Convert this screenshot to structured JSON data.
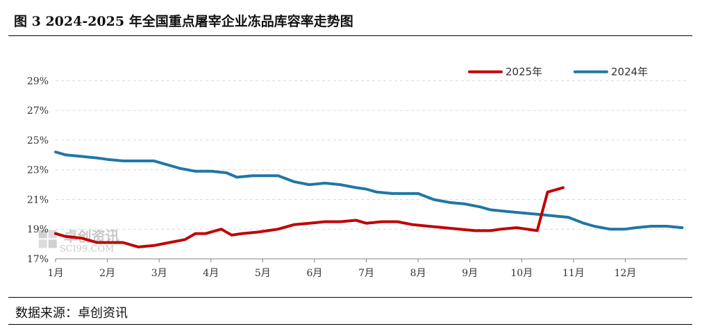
{
  "title": "图 3  2024-2025 年全国重点屠宰企业冻品库容率走势图",
  "source": "数据来源：卓创资讯",
  "watermark": {
    "brand": "卓创资讯",
    "url": "SCI99.COM"
  },
  "colors": {
    "series_2025": "#c00000",
    "series_2024": "#1f77a4",
    "grid": "#d9d9d9",
    "axis": "#808080"
  },
  "chart_data": {
    "type": "line",
    "x_ticks": [
      "1月",
      "2月",
      "3月",
      "4月",
      "5月",
      "6月",
      "7月",
      "8月",
      "9月",
      "10月",
      "11月",
      "12月"
    ],
    "y_ticks": [
      "17%",
      "19%",
      "21%",
      "23%",
      "25%",
      "27%",
      "29%"
    ],
    "ylim": [
      17,
      30
    ],
    "xlim": [
      1,
      13.2
    ],
    "grid": "horizontal dashed",
    "legend_position": "top-right",
    "series": [
      {
        "name": "2025年",
        "color": "#c00000",
        "x": [
          1.0,
          1.2,
          1.5,
          1.8,
          2.0,
          2.3,
          2.6,
          2.9,
          3.2,
          3.5,
          3.7,
          3.9,
          4.2,
          4.4,
          4.6,
          4.9,
          5.1,
          5.3,
          5.6,
          5.9,
          6.2,
          6.5,
          6.8,
          7.0,
          7.3,
          7.6,
          7.9,
          8.2,
          8.5,
          8.8,
          9.1,
          9.4,
          9.6,
          9.9,
          10.1,
          10.3,
          10.5,
          10.8
        ],
        "values": [
          18.7,
          18.5,
          18.4,
          18.1,
          18.1,
          18.1,
          17.8,
          17.9,
          18.1,
          18.3,
          18.7,
          18.7,
          19.0,
          18.6,
          18.7,
          18.8,
          18.9,
          19.0,
          19.3,
          19.4,
          19.5,
          19.5,
          19.6,
          19.4,
          19.5,
          19.5,
          19.3,
          19.2,
          19.1,
          19.0,
          18.9,
          18.9,
          19.0,
          19.1,
          19.0,
          18.9,
          21.5,
          21.8
        ]
      },
      {
        "name": "2024年",
        "color": "#1f77a4",
        "x": [
          1.0,
          1.2,
          1.5,
          1.8,
          2.0,
          2.3,
          2.6,
          2.9,
          3.2,
          3.4,
          3.7,
          4.0,
          4.3,
          4.5,
          4.8,
          5.0,
          5.3,
          5.6,
          5.9,
          6.2,
          6.5,
          6.8,
          7.0,
          7.2,
          7.5,
          7.8,
          8.0,
          8.3,
          8.6,
          8.9,
          9.2,
          9.4,
          9.7,
          10.0,
          10.3,
          10.6,
          10.9,
          11.2,
          11.4,
          11.7,
          12.0,
          12.2,
          12.5,
          12.8,
          13.1
        ],
        "values": [
          24.2,
          24.0,
          23.9,
          23.8,
          23.7,
          23.6,
          23.6,
          23.6,
          23.3,
          23.1,
          22.9,
          22.9,
          22.8,
          22.5,
          22.6,
          22.6,
          22.6,
          22.2,
          22.0,
          22.1,
          22.0,
          21.8,
          21.7,
          21.5,
          21.4,
          21.4,
          21.4,
          21.0,
          20.8,
          20.7,
          20.5,
          20.3,
          20.2,
          20.1,
          20.0,
          19.9,
          19.8,
          19.4,
          19.2,
          19.0,
          19.0,
          19.1,
          19.2,
          19.2,
          19.1
        ]
      }
    ]
  }
}
